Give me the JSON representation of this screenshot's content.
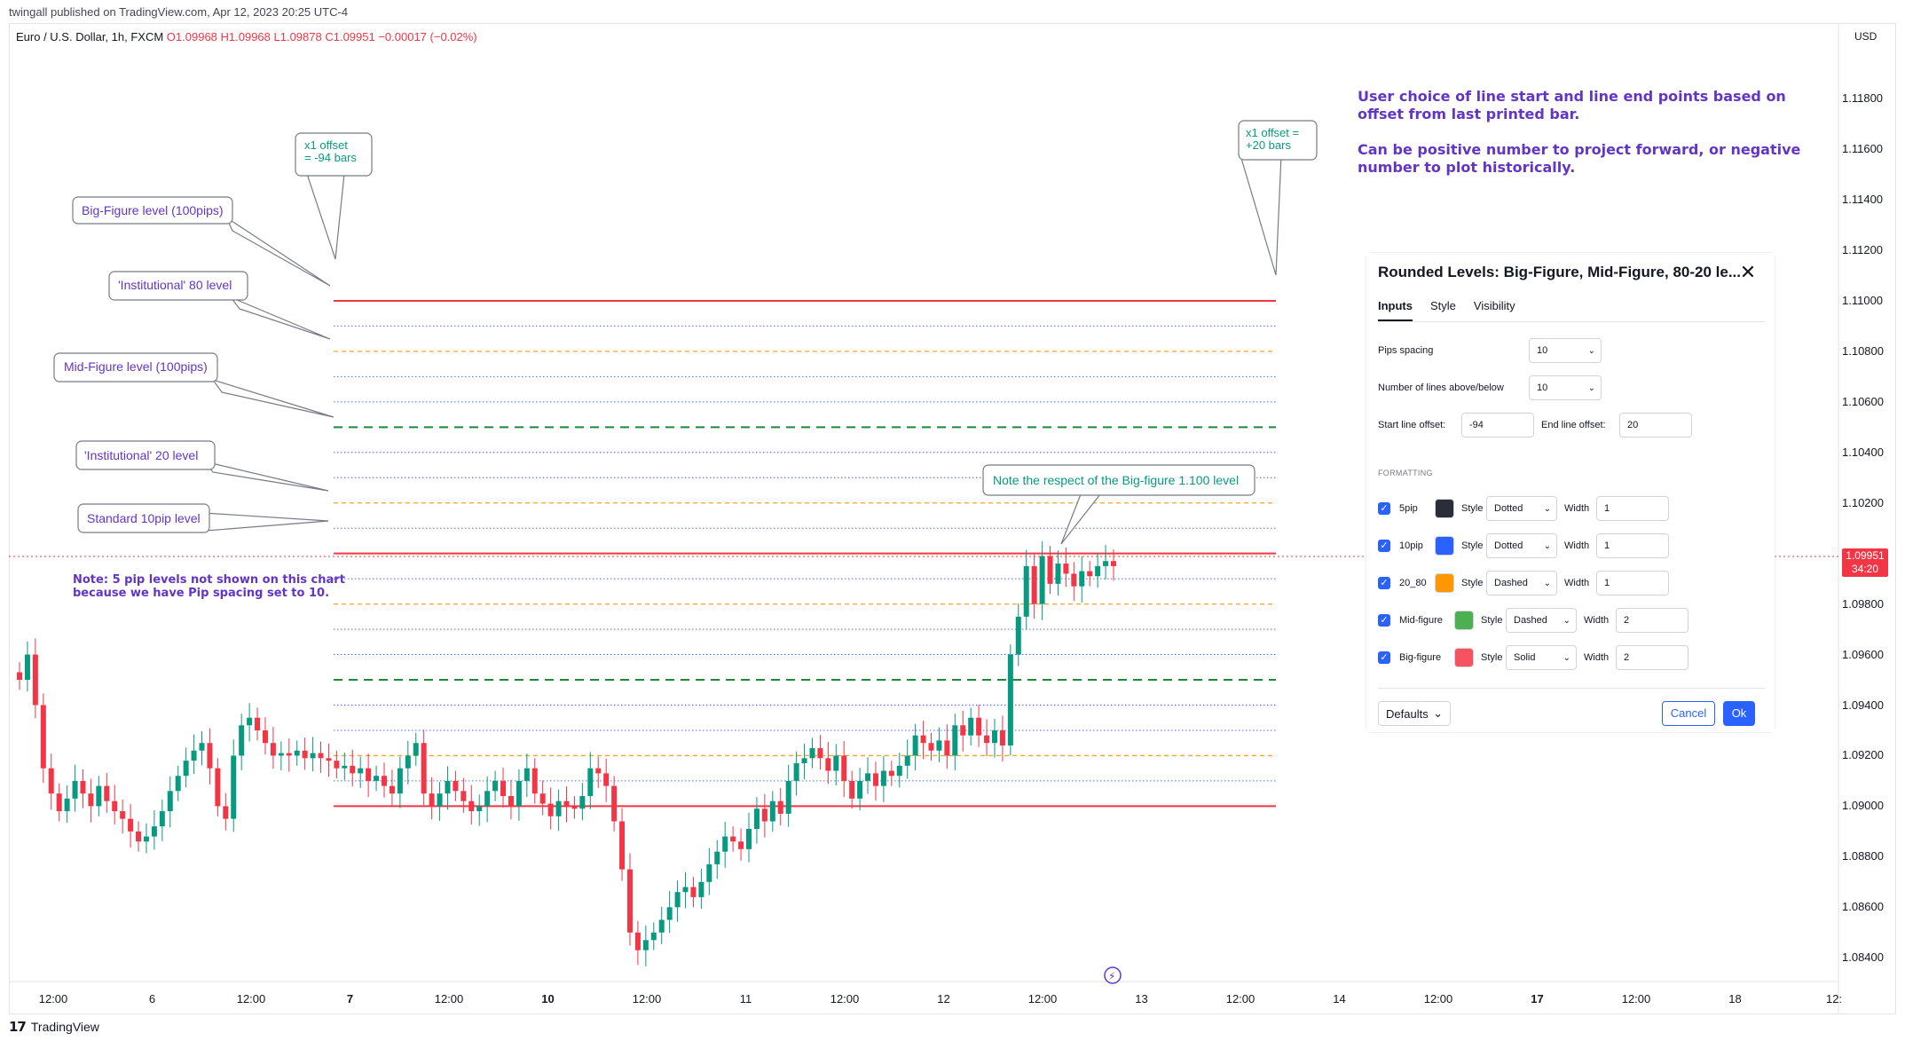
{
  "publisher": "twingall published on TradingView.com, Apr 12, 2023 20:25 UTC-4",
  "symbol": {
    "name": "Euro / U.S. Dollar, 1h, FXCM",
    "ohlc": "O1.09968  H1.09968  L1.09878  C1.09951  −0.00017 (−0.02%)"
  },
  "price_axis": {
    "currency": "USD",
    "ticks": [
      "1.11800",
      "1.11600",
      "1.11400",
      "1.11200",
      "1.11000",
      "1.10800",
      "1.10600",
      "1.10400",
      "1.10200",
      "1.10000",
      "1.09800",
      "1.09600",
      "1.09400",
      "1.09200",
      "1.09000",
      "1.08800",
      "1.08600",
      "1.08400"
    ],
    "last_price": "1.09951",
    "countdown": "34:20"
  },
  "time_axis": {
    "ticks": [
      {
        "label": "12:00",
        "bold": false
      },
      {
        "label": "6",
        "bold": false
      },
      {
        "label": "12:00",
        "bold": false
      },
      {
        "label": "7",
        "bold": true
      },
      {
        "label": "12:00",
        "bold": false
      },
      {
        "label": "10",
        "bold": true
      },
      {
        "label": "12:00",
        "bold": false
      },
      {
        "label": "11",
        "bold": false
      },
      {
        "label": "12:00",
        "bold": false
      },
      {
        "label": "12",
        "bold": false
      },
      {
        "label": "12:00",
        "bold": false
      },
      {
        "label": "13",
        "bold": false
      },
      {
        "label": "12:00",
        "bold": false
      },
      {
        "label": "14",
        "bold": false
      },
      {
        "label": "12:00",
        "bold": false
      },
      {
        "label": "17",
        "bold": true
      },
      {
        "label": "12:00",
        "bold": false
      },
      {
        "label": "18",
        "bold": false
      },
      {
        "label": "12:",
        "bold": false
      }
    ]
  },
  "annotations": {
    "headline_1": "User choice of line start and line end points based on offset from last printed bar.",
    "headline_2": "Can be positive number to project forward, or negative number to plot historically.",
    "start_offset_callout": "x1 offset = -94 bars",
    "end_offset_callout": "x1 offset = +20 bars",
    "big_figure_callout": "Big-Figure level (100pips)",
    "inst80_callout": "'Institutional' 80 level",
    "mid_figure_callout": "Mid-Figure level (100pips)",
    "inst20_callout": "'Institutional' 20 level",
    "standard_callout": "Standard 10pip level",
    "respect_callout": "Note the respect of the Big-figure 1.100 level",
    "note_line_1": "Note: 5 pip levels not shown on this chart",
    "note_line_2": "because we have Pip spacing set to 10."
  },
  "colors": {
    "big_figure": "#f23645",
    "mid_figure": "#1b8a3a",
    "level_20_80": "#f5a623",
    "level_10": "#4a6cf7",
    "up_candle": "#089981",
    "down_candle": "#f23645",
    "accent": "#2962ff"
  },
  "chart_data": {
    "type": "candlestick",
    "symbol": "EURUSD",
    "timeframe": "1h",
    "ylim": [
      1.0832,
      1.1205
    ],
    "levels": {
      "big_figure": [
        1.09,
        1.1,
        1.11
      ],
      "mid_figure": [
        1.095,
        1.105
      ],
      "institutional_80": [
        1.092,
        1.098,
        1.108
      ],
      "institutional_20": [
        1.102
      ],
      "pip_10": [
        1.091,
        1.093,
        1.094,
        1.096,
        1.097,
        1.099,
        1.101,
        1.103,
        1.104,
        1.106,
        1.107,
        1.109
      ]
    },
    "closes": [
      1.095,
      1.096,
      1.094,
      1.0915,
      1.0905,
      1.0898,
      1.0903,
      1.091,
      1.0905,
      1.09,
      1.0908,
      1.0902,
      1.0898,
      1.0895,
      1.089,
      1.0886,
      1.0888,
      1.0892,
      1.0898,
      1.0906,
      1.0912,
      1.0918,
      1.0922,
      1.0925,
      1.0915,
      1.09,
      1.0895,
      1.092,
      1.0932,
      1.0935,
      1.093,
      1.0925,
      1.092,
      1.0921,
      1.092,
      1.0922,
      1.0919,
      1.0921,
      1.0919,
      1.0918,
      1.0915,
      1.0916,
      1.0913,
      1.0915,
      1.091,
      1.0912,
      1.0908,
      1.0905,
      1.0915,
      1.092,
      1.0925,
      1.0905,
      1.09,
      1.0905,
      1.091,
      1.0906,
      1.0902,
      1.0898,
      1.09,
      1.0906,
      1.091,
      1.0904,
      1.09,
      1.091,
      1.0915,
      1.0905,
      1.0901,
      1.0896,
      1.0902,
      1.09,
      1.0899,
      1.0904,
      1.0915,
      1.0913,
      1.0908,
      1.0894,
      1.0875,
      1.085,
      1.0843,
      1.0847,
      1.085,
      1.0855,
      1.086,
      1.0866,
      1.0868,
      1.0864,
      1.087,
      1.0877,
      1.0882,
      1.0888,
      1.0886,
      1.0883,
      1.0891,
      1.0899,
      1.0894,
      1.0902,
      1.0897,
      1.091,
      1.0917,
      1.0919,
      1.0923,
      1.0919,
      1.0914,
      1.092,
      1.091,
      1.0903,
      1.091,
      1.0913,
      1.0908,
      1.0914,
      1.0912,
      1.0916,
      1.092,
      1.0928,
      1.0925,
      1.0922,
      1.0926,
      1.092,
      1.0932,
      1.0928,
      1.0935,
      1.0928,
      1.0925,
      1.093,
      1.0924,
      1.096,
      1.0975,
      1.0995,
      1.098,
      1.0999,
      1.0988,
      1.0996,
      1.0992,
      1.0987,
      1.0993,
      1.0991,
      1.0995,
      1.0997,
      1.0995
    ]
  },
  "dialog": {
    "title": "Rounded Levels: Big-Figure, Mid-Figure, 80-20 le...",
    "tabs": [
      "Inputs",
      "Style",
      "Visibility"
    ],
    "pips_spacing_label": "Pips spacing",
    "pips_spacing_value": "10",
    "num_lines_label": "Number of lines above/below",
    "num_lines_value": "10",
    "start_offset_label": "Start line offset:",
    "start_offset_value": "-94",
    "end_offset_label": "End line offset:",
    "end_offset_value": "20",
    "formatting_label": "FORMATTING",
    "style_label": "Style",
    "width_label": "Width",
    "rows": [
      {
        "name": "5pip",
        "color": "#2a2e39",
        "style": "Dotted",
        "width": "1"
      },
      {
        "name": "10pip",
        "color": "#2962ff",
        "style": "Dotted",
        "width": "1"
      },
      {
        "name": "20_80",
        "color": "#ff9800",
        "style": "Dashed",
        "width": "1"
      },
      {
        "name": "Mid-figure",
        "color": "#4caf50",
        "style": "Dashed",
        "width": "2"
      },
      {
        "name": "Big-figure",
        "color": "#f7525f",
        "style": "Solid",
        "width": "2"
      }
    ],
    "defaults_label": "Defaults",
    "cancel_label": "Cancel",
    "ok_label": "Ok"
  },
  "footer": {
    "brand": "TradingView"
  }
}
